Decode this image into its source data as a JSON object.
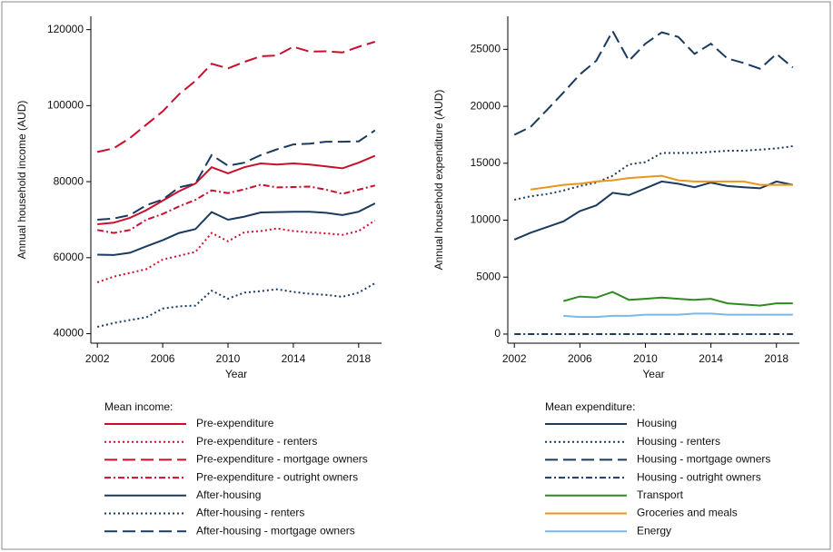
{
  "chart_data": [
    {
      "type": "line",
      "x_label": "Year",
      "y_label": "Annual household income (AUD)",
      "legend_title": "Mean income:",
      "x": [
        2002,
        2003,
        2004,
        2005,
        2006,
        2007,
        2008,
        2009,
        2010,
        2011,
        2012,
        2013,
        2014,
        2015,
        2016,
        2017,
        2018,
        2019
      ],
      "xlim": [
        2001.6,
        2019.4
      ],
      "xticks": [
        2002,
        2006,
        2010,
        2014,
        2018
      ],
      "ylim": [
        37500,
        123500
      ],
      "yticks": [
        40000,
        60000,
        80000,
        100000,
        120000
      ],
      "series": [
        {
          "name": "Pre-expenditure",
          "color": "#c8102e",
          "dash": "solid",
          "values": [
            68800,
            69200,
            70500,
            72500,
            75000,
            77500,
            79500,
            83800,
            82200,
            83800,
            84800,
            84500,
            84800,
            84500,
            84000,
            83500,
            85000,
            86800
          ]
        },
        {
          "name": "Pre-expenditure - renters",
          "color": "#c8102e",
          "dash": "dot",
          "values": [
            53500,
            55000,
            56000,
            57000,
            59500,
            60500,
            61500,
            66500,
            64300,
            66700,
            67000,
            67700,
            67000,
            66700,
            66400,
            66000,
            67000,
            69800
          ]
        },
        {
          "name": "Pre-expenditure - mortgage owners",
          "color": "#c8102e",
          "dash": "longdash",
          "values": [
            87800,
            88800,
            91500,
            95000,
            98500,
            103000,
            106500,
            111000,
            109800,
            111500,
            113000,
            113200,
            115500,
            114200,
            114300,
            114000,
            115500,
            116800
          ]
        },
        {
          "name": "Pre-expenditure - outright owners",
          "color": "#c8102e",
          "dash": "dashdot",
          "values": [
            67300,
            66500,
            67300,
            70000,
            71500,
            73500,
            75200,
            77700,
            77000,
            78000,
            79200,
            78500,
            78600,
            78700,
            77900,
            76800,
            77900,
            79000
          ]
        },
        {
          "name": "After-housing",
          "color": "#1a3a5e",
          "dash": "solid",
          "values": [
            60800,
            60700,
            61300,
            63000,
            64600,
            66500,
            67500,
            72000,
            70000,
            70800,
            71900,
            72000,
            72100,
            72100,
            71800,
            71200,
            72100,
            74300
          ]
        },
        {
          "name": "After-housing - renters",
          "color": "#1a3a5e",
          "dash": "dot",
          "values": [
            41800,
            42800,
            43600,
            44300,
            46600,
            47200,
            47400,
            51300,
            49200,
            50800,
            51200,
            51700,
            51000,
            50500,
            50200,
            49700,
            50800,
            53300
          ]
        },
        {
          "name": "After-housing - mortgage owners",
          "color": "#1a3a5e",
          "dash": "longdash",
          "values": [
            70000,
            70300,
            71200,
            73800,
            75300,
            78500,
            79500,
            87000,
            84200,
            85000,
            87000,
            88500,
            89800,
            90000,
            90500,
            90500,
            90600,
            93500
          ]
        }
      ]
    },
    {
      "type": "line",
      "x_label": "Year",
      "y_label": "Annual household expenditure (AUD)",
      "legend_title": "Mean expenditure:",
      "x": [
        2002,
        2003,
        2004,
        2005,
        2006,
        2007,
        2008,
        2009,
        2010,
        2011,
        2012,
        2013,
        2014,
        2015,
        2016,
        2017,
        2018,
        2019
      ],
      "xlim": [
        2001.6,
        2019.4
      ],
      "xticks": [
        2002,
        2006,
        2010,
        2014,
        2018
      ],
      "ylim": [
        -800,
        27900
      ],
      "yticks": [
        0,
        5000,
        10000,
        15000,
        20000,
        25000
      ],
      "series": [
        {
          "name": "Housing",
          "color": "#1a3a5e",
          "dash": "solid",
          "values": [
            8300,
            8900,
            9400,
            9900,
            10800,
            11300,
            12400,
            12200,
            12800,
            13400,
            13200,
            12900,
            13300,
            13000,
            12900,
            12800,
            13400,
            13100
          ]
        },
        {
          "name": "Housing - renters",
          "color": "#1a3a5e",
          "dash": "dot",
          "values": [
            11800,
            12100,
            12300,
            12600,
            13000,
            13300,
            13900,
            14900,
            15100,
            15900,
            15900,
            15900,
            16000,
            16100,
            16100,
            16200,
            16300,
            16500
          ]
        },
        {
          "name": "Housing - mortgage owners",
          "color": "#1a3a5e",
          "dash": "longdash",
          "values": [
            17500,
            18200,
            19700,
            21200,
            22800,
            24000,
            26600,
            24000,
            25500,
            26500,
            26100,
            24600,
            25500,
            24200,
            23800,
            23300,
            24600,
            23400
          ]
        },
        {
          "name": "Housing - outright owners",
          "color": "#1a3a5e",
          "dash": "dashdot",
          "values": [
            0,
            0,
            0,
            0,
            0,
            0,
            0,
            0,
            0,
            0,
            0,
            0,
            0,
            0,
            0,
            0,
            0,
            0
          ]
        },
        {
          "name": "Transport",
          "color": "#2e8b1e",
          "dash": "solid",
          "values": [
            null,
            null,
            null,
            2900,
            3300,
            3200,
            3700,
            3000,
            3100,
            3200,
            3100,
            3000,
            3100,
            2700,
            2600,
            2500,
            2700,
            2700
          ]
        },
        {
          "name": "Groceries and meals",
          "color": "#e8961e",
          "dash": "solid",
          "values": [
            null,
            12700,
            12900,
            13100,
            13200,
            13400,
            13500,
            13700,
            13800,
            13900,
            13500,
            13400,
            13400,
            13400,
            13400,
            13100,
            13100,
            13100
          ]
        },
        {
          "name": "Energy",
          "color": "#7ab8e8",
          "dash": "solid",
          "values": [
            null,
            null,
            null,
            1600,
            1500,
            1500,
            1600,
            1600,
            1700,
            1700,
            1700,
            1800,
            1800,
            1700,
            1700,
            1700,
            1700,
            1700
          ]
        }
      ]
    }
  ]
}
